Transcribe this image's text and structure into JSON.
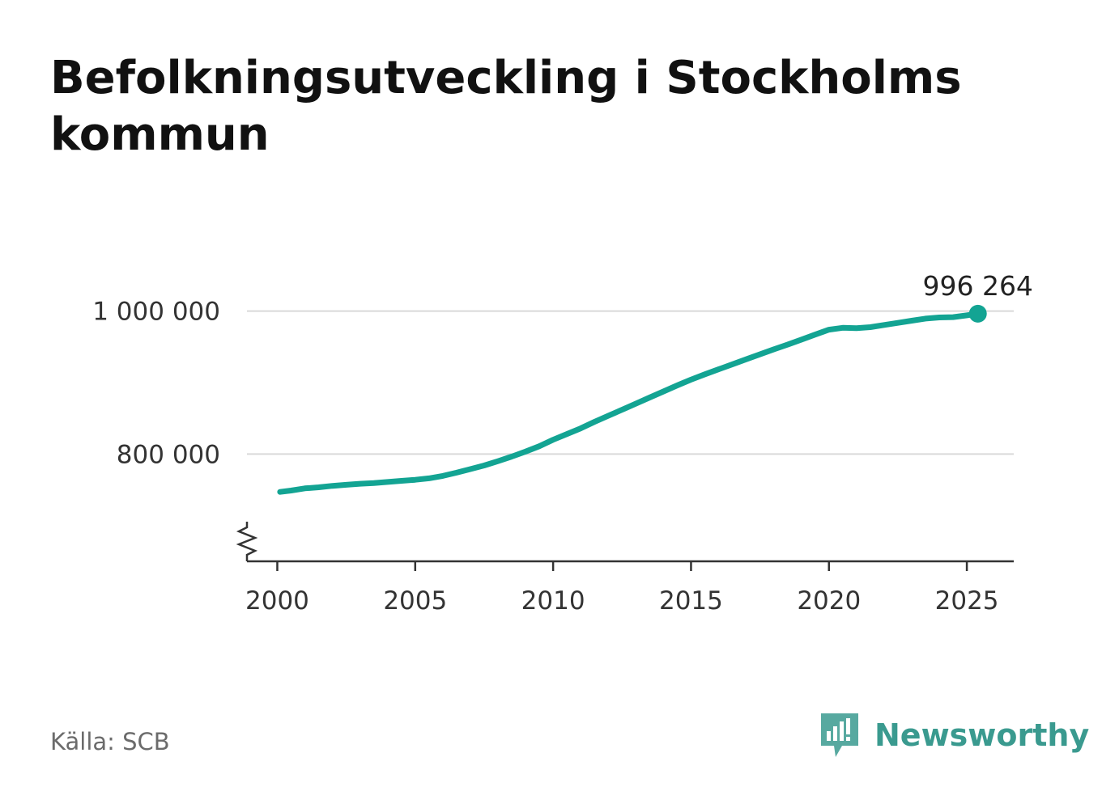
{
  "title": "Befolkningsutveckling i Stockholms kommun",
  "source": "Källa: SCB",
  "brand": {
    "name": "Newsworthy",
    "icon": "newsworthy-logo-icon",
    "color": "#3a9a8f"
  },
  "chart_data": {
    "type": "line",
    "title": "Befolkningsutveckling i Stockholms kommun",
    "xlabel": "",
    "ylabel": "",
    "xlim": [
      1998.9,
      2026.7
    ],
    "ylim": [
      650000,
      1090000
    ],
    "y_axis_break": true,
    "grid": "horizontal",
    "x_ticks": [
      {
        "value": 2000,
        "label": "2000"
      },
      {
        "value": 2005,
        "label": "2005"
      },
      {
        "value": 2010,
        "label": "2010"
      },
      {
        "value": 2015,
        "label": "2015"
      },
      {
        "value": 2020,
        "label": "2020"
      },
      {
        "value": 2025,
        "label": "2025"
      }
    ],
    "y_ticks": [
      {
        "value": 800000,
        "label": "800 000"
      },
      {
        "value": 1000000,
        "label": "1 000 000"
      }
    ],
    "series": [
      {
        "color": "#13a493",
        "x": [
          2000.1,
          2000.5,
          2001.0,
          2001.5,
          2002.0,
          2002.5,
          2003.0,
          2003.5,
          2004.0,
          2004.5,
          2005.0,
          2005.5,
          2006.0,
          2006.5,
          2007.0,
          2007.5,
          2008.0,
          2008.5,
          2009.0,
          2009.5,
          2010.0,
          2010.5,
          2011.0,
          2011.5,
          2012.0,
          2012.5,
          2013.0,
          2013.5,
          2014.0,
          2014.5,
          2015.0,
          2015.5,
          2016.0,
          2016.5,
          2017.0,
          2017.5,
          2018.0,
          2018.5,
          2019.0,
          2019.5,
          2020.0,
          2020.5,
          2021.0,
          2021.5,
          2022.0,
          2022.5,
          2023.0,
          2023.5,
          2024.0,
          2024.5,
          2025.0,
          2025.4
        ],
        "values": [
          747000,
          749000,
          752000,
          753500,
          755500,
          757000,
          758500,
          759500,
          761000,
          762500,
          764000,
          766000,
          769500,
          774000,
          779000,
          784000,
          790000,
          796500,
          803500,
          811000,
          820000,
          828000,
          836000,
          845000,
          853500,
          862000,
          870500,
          879000,
          887500,
          896000,
          904000,
          911500,
          918500,
          925500,
          932500,
          939500,
          946500,
          953000,
          960000,
          967000,
          974000,
          976500,
          976000,
          977500,
          980500,
          983500,
          986500,
          989500,
          991000,
          991500,
          994000,
          996264
        ]
      }
    ],
    "annotations": [
      {
        "x": 2025.4,
        "y": 996264,
        "label": "996 264"
      }
    ]
  }
}
